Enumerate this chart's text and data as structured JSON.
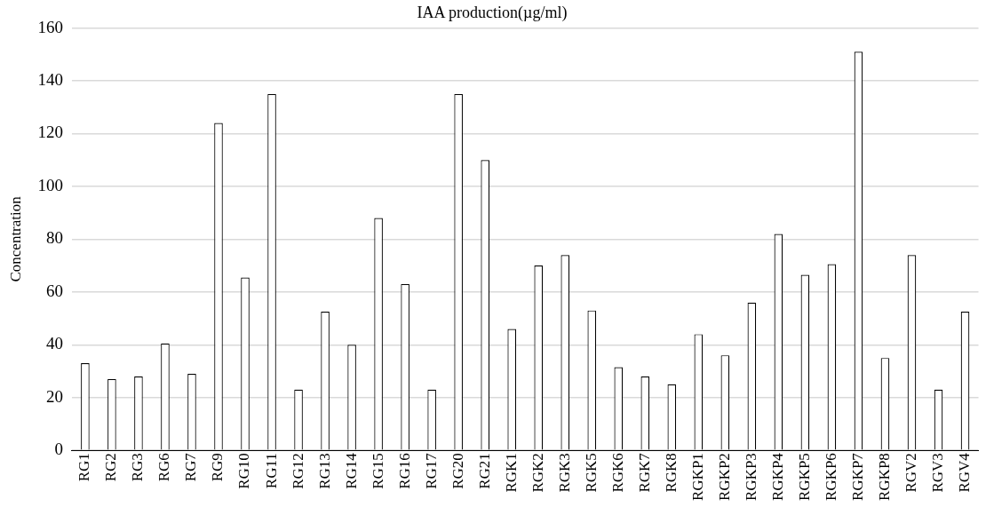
{
  "chart_data": {
    "type": "bar",
    "title": "IAA production(µg/ml)",
    "ylabel": "Concentration",
    "categories": [
      "RG1",
      "RG2",
      "RG3",
      "RG6",
      "RG7",
      "RG9",
      "RG10",
      "RG11",
      "RG12",
      "RG13",
      "RG14",
      "RG15",
      "RG16",
      "RG17",
      "RG20",
      "RG21",
      "RGK1",
      "RGK2",
      "RGK3",
      "RGK5",
      "RGK6",
      "RGK7",
      "RGK8",
      "RGKP1",
      "RGKP2",
      "RGKP3",
      "RGKP4",
      "RGKP5",
      "RGKP6",
      "RGKP7",
      "RGKP8",
      "RGV2",
      "RGV3",
      "RGV4"
    ],
    "values": [
      33,
      27,
      28,
      40.5,
      29,
      124,
      65.5,
      135,
      23,
      52.5,
      40,
      88,
      63,
      23,
      135,
      110,
      46,
      70,
      74,
      53,
      31.5,
      28,
      25,
      44,
      36,
      56,
      82,
      66.5,
      70.5,
      151,
      35,
      74,
      23,
      52.5
    ],
    "color": "#ffffff",
    "ylim": [
      0,
      160
    ],
    "yticks": [
      0,
      20,
      40,
      60,
      80,
      100,
      120,
      140,
      160
    ],
    "grid": "y",
    "legend": false
  }
}
